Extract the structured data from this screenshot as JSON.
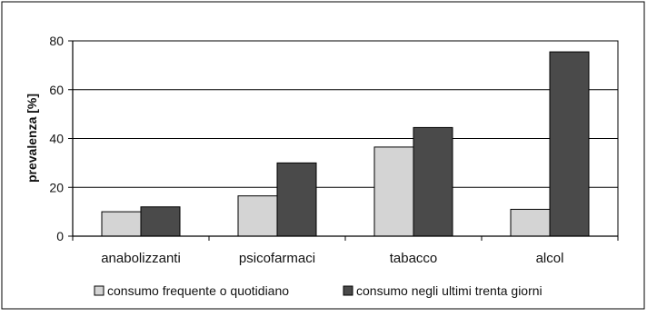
{
  "chart_data": {
    "type": "bar",
    "title": "",
    "xlabel": "",
    "ylabel": "prevalenza [%]",
    "ylim": [
      0,
      80
    ],
    "yticks": [
      0,
      20,
      40,
      60,
      80
    ],
    "grid": true,
    "legend_position": "bottom",
    "categories": [
      "anabolizzanti",
      "psicofarmaci",
      "tabacco",
      "alcol"
    ],
    "series": [
      {
        "name": "consumo frequente o quotidiano",
        "values": [
          10,
          16.5,
          36.5,
          11
        ],
        "color": "#d4d4d4"
      },
      {
        "name": "consumo negli ultimi trenta giorni",
        "values": [
          12,
          30,
          44.5,
          75.5
        ],
        "color": "#4a4a4a"
      }
    ]
  }
}
